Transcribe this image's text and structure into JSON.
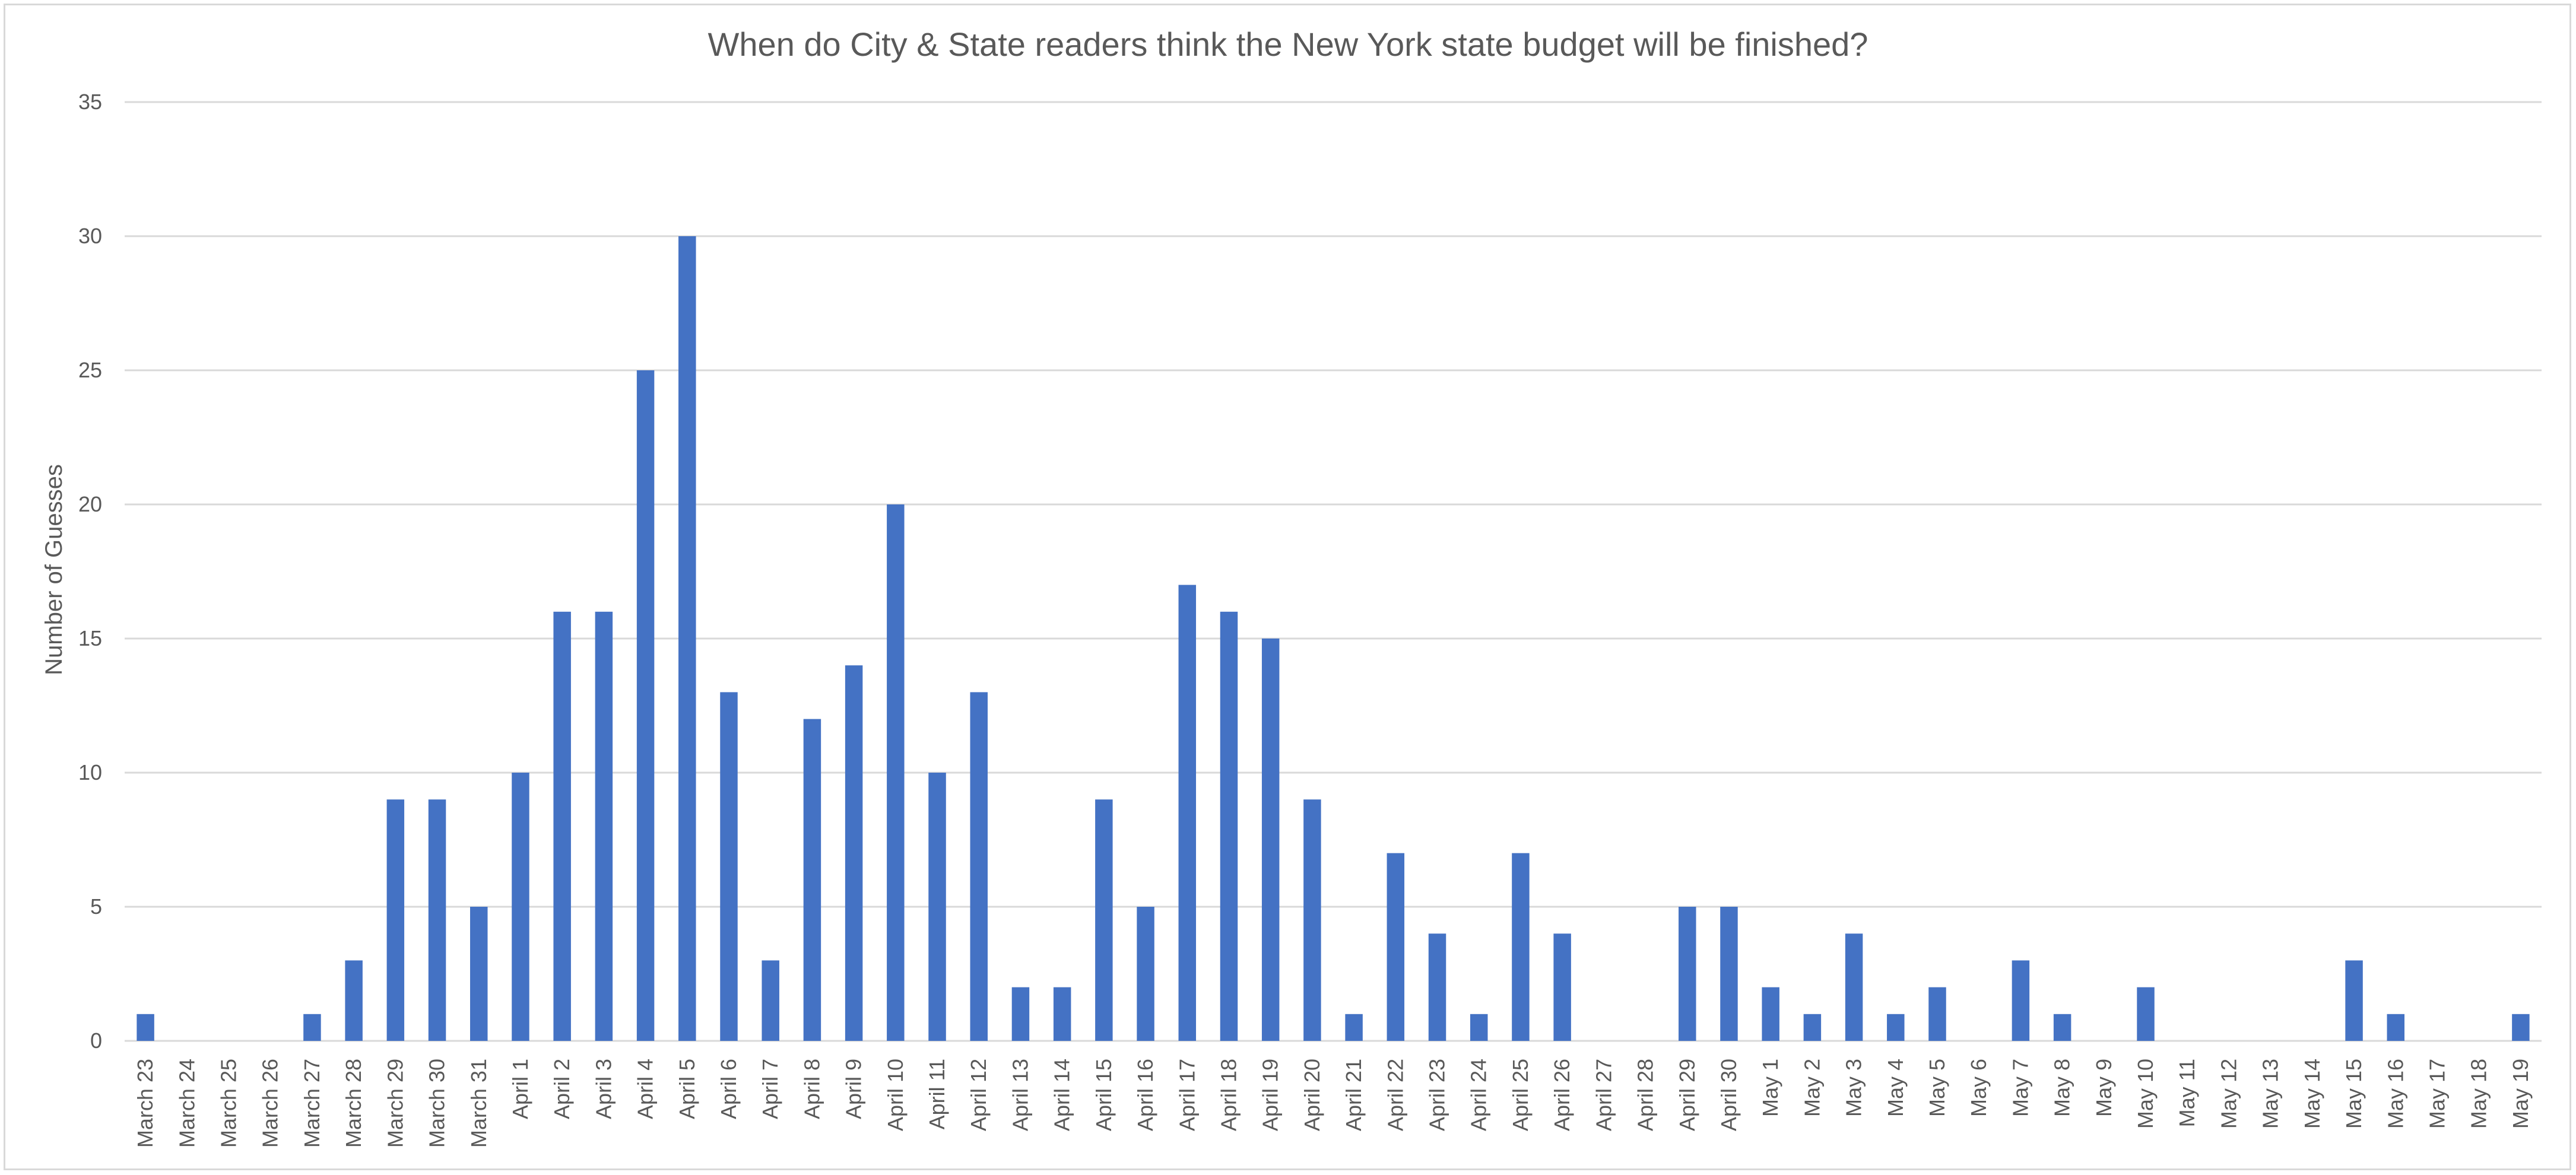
{
  "chart_data": {
    "type": "bar",
    "title": "When do City & State readers think the New York state budget will be finished?",
    "xlabel": "",
    "ylabel": "Number of Guesses",
    "ylim": [
      0,
      35
    ],
    "yticks": [
      0,
      5,
      10,
      15,
      20,
      25,
      30,
      35
    ],
    "grid": true,
    "legend": "none",
    "bar_color": "#4472c4",
    "grid_color": "#d9d9d9",
    "categories": [
      "March 23",
      "March 24",
      "March 25",
      "March 26",
      "March 27",
      "March 28",
      "March 29",
      "March 30",
      "March 31",
      "April 1",
      "April 2",
      "April 3",
      "April 4",
      "April 5",
      "April 6",
      "April 7",
      "April 8",
      "April 9",
      "April 10",
      "April 11",
      "April 12",
      "April 13",
      "April 14",
      "April 15",
      "April 16",
      "April 17",
      "April 18",
      "April 19",
      "April 20",
      "April 21",
      "April 22",
      "April 23",
      "April 24",
      "April 25",
      "April 26",
      "April 27",
      "April 28",
      "April 29",
      "April 30",
      "May 1",
      "May 2",
      "May 3",
      "May 4",
      "May 5",
      "May 6",
      "May 7",
      "May 8",
      "May 9",
      "May 10",
      "May 11",
      "May 12",
      "May 13",
      "May 14",
      "May 15",
      "May 16",
      "May 17",
      "May 18",
      "May 19"
    ],
    "values": [
      1,
      0,
      0,
      0,
      1,
      3,
      9,
      9,
      5,
      10,
      16,
      16,
      25,
      30,
      13,
      3,
      12,
      14,
      20,
      10,
      13,
      2,
      2,
      9,
      5,
      17,
      16,
      15,
      9,
      1,
      7,
      4,
      1,
      7,
      4,
      0,
      0,
      5,
      5,
      2,
      1,
      4,
      1,
      2,
      0,
      3,
      1,
      0,
      2,
      0,
      0,
      0,
      0,
      3,
      1,
      0,
      0,
      1
    ]
  }
}
